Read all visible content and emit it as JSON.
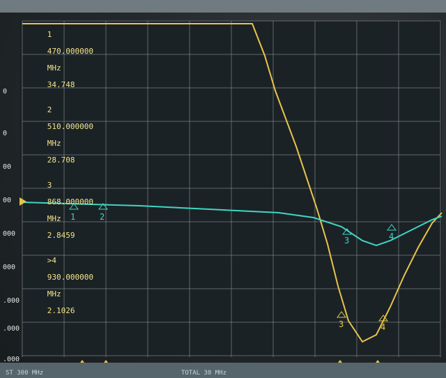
{
  "marker_table": {
    "rows": [
      {
        "id": "1",
        "freq": "470.000000",
        "unit": "MHz",
        "value": "34.748"
      },
      {
        "id": "2",
        "freq": "510.000000",
        "unit": "MHz",
        "value": "28.708"
      },
      {
        "id": "3",
        "freq": "868.000000",
        "unit": "MHz",
        "value": "2.8459"
      },
      {
        "id": ">4",
        "freq": "930.000000",
        "unit": "MHz",
        "value": "2.1026"
      }
    ]
  },
  "y_axis_labels": [
    "0",
    "0",
    "00",
    "00",
    "000",
    "000",
    ".000",
    ".000",
    ".000"
  ],
  "markers": {
    "trace1": [
      "1",
      "2",
      "3",
      "4"
    ],
    "trace2": [
      "3",
      "4"
    ]
  },
  "status": {
    "left": "ST 300 MHz",
    "mid": "TOTAL 30 MHz"
  },
  "colors": {
    "trace_yellow": "#e8c54a",
    "trace_cyan": "#3fd6c4",
    "grid": "#8a9594",
    "marker_text": "#f2e48a"
  }
}
